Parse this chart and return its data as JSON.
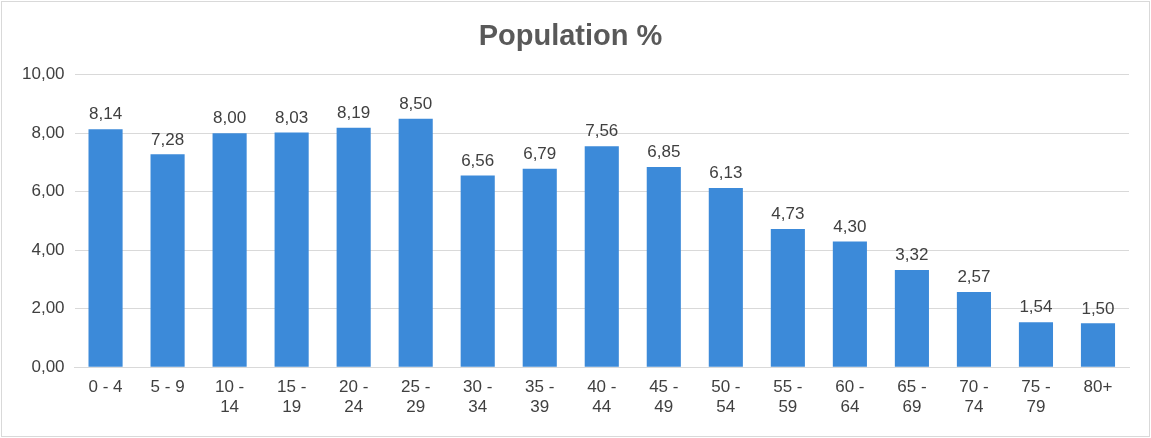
{
  "chart_data": {
    "type": "bar",
    "title": "Population %",
    "categories": [
      "0 - 4",
      "5 - 9",
      "10 - 14",
      "15 - 19",
      "20 - 24",
      "25 - 29",
      "30 - 34",
      "35 - 39",
      "40 - 44",
      "45 - 49",
      "50 - 54",
      "55 - 59",
      "60 - 64",
      "65 - 69",
      "70 - 74",
      "75 - 79",
      "80+"
    ],
    "values": [
      8.14,
      7.28,
      8.0,
      8.03,
      8.19,
      8.5,
      6.56,
      6.79,
      7.56,
      6.85,
      6.13,
      4.73,
      4.3,
      3.32,
      2.57,
      1.54,
      1.5
    ],
    "value_labels": [
      "8,14",
      "7,28",
      "8,00",
      "8,03",
      "8,19",
      "8,50",
      "6,56",
      "6,79",
      "7,56",
      "6,85",
      "6,13",
      "4,73",
      "4,30",
      "3,32",
      "2,57",
      "1,54",
      "1,50"
    ],
    "color": "#3c8ad9",
    "ylim": [
      0,
      10
    ],
    "yticks": [
      {
        "value": 0,
        "label": "0,00"
      },
      {
        "value": 2,
        "label": "2,00"
      },
      {
        "value": 4,
        "label": "4,00"
      },
      {
        "value": 6,
        "label": "6,00"
      },
      {
        "value": 8,
        "label": "8,00"
      },
      {
        "value": 10,
        "label": "10,00"
      }
    ],
    "grid": "y"
  }
}
